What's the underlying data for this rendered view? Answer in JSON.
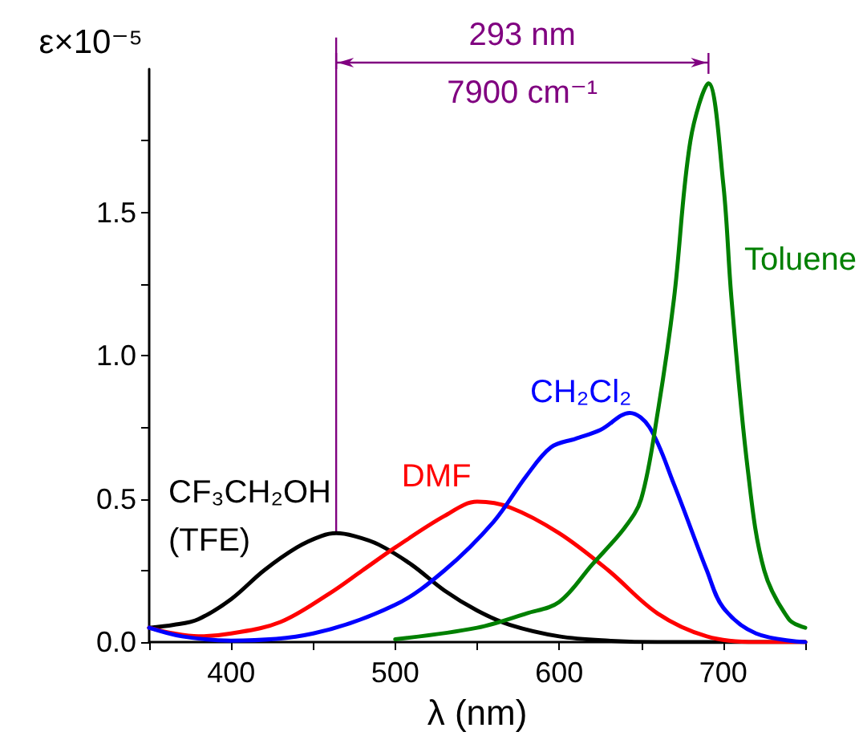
{
  "chart_data": {
    "type": "line",
    "xlabel": "λ (nm)",
    "ylabel": "ε×10⁻⁵",
    "xlim": [
      350,
      750
    ],
    "xticks": [
      {
        "value": 350,
        "label": null
      },
      400,
      {
        "value": 450,
        "label": null
      },
      500,
      {
        "value": 550,
        "label": null
      },
      600,
      {
        "value": 650,
        "label": null
      },
      700,
      {
        "value": 750,
        "label": null
      }
    ],
    "ylim": [
      0,
      2.0
    ],
    "yticks": [
      {
        "value": 0,
        "label": "0.0"
      },
      {
        "value": 0.25,
        "label": null
      },
      {
        "value": 0.5,
        "label": "0.5"
      },
      {
        "value": 0.75,
        "label": null
      },
      {
        "value": 1,
        "label": "1.0"
      },
      {
        "value": 1.25,
        "label": null
      },
      {
        "value": 1.5,
        "label": "1.5"
      },
      {
        "value": 1.75,
        "label": null
      }
    ],
    "grid": false,
    "legend": false,
    "marker": "none",
    "line_style": "solid",
    "annotations": [
      "293 nm",
      "7900 cm⁻¹"
    ],
    "ref_lines": [
      {
        "axis": "x",
        "value": 464,
        "color": "#800080"
      }
    ],
    "series": [
      {
        "name": "CF₃CH₂OH (TFE)",
        "color": "#000000",
        "x": [
          350,
          365,
          380,
          400,
          420,
          440,
          455,
          464,
          475,
          490,
          510,
          530,
          550,
          570,
          600,
          630,
          660,
          700,
          750
        ],
        "values": [
          0.05,
          0.06,
          0.08,
          0.15,
          0.25,
          0.33,
          0.37,
          0.38,
          0.37,
          0.34,
          0.27,
          0.18,
          0.11,
          0.06,
          0.02,
          0.005,
          0,
          0,
          0
        ]
      },
      {
        "name": "DMF",
        "color": "#ff0000",
        "x": [
          350,
          365,
          380,
          400,
          430,
          460,
          480,
          500,
          530,
          550,
          570,
          600,
          630,
          660,
          690,
          720,
          750
        ],
        "values": [
          0.05,
          0.03,
          0.02,
          0.03,
          0.07,
          0.17,
          0.25,
          0.33,
          0.44,
          0.49,
          0.47,
          0.38,
          0.25,
          0.1,
          0.02,
          0,
          0
        ]
      },
      {
        "name": "CH₂Cl₂",
        "color": "#0000ff",
        "x": [
          350,
          370,
          400,
          450,
          500,
          530,
          560,
          580,
          595,
          610,
          625,
          643,
          655,
          670,
          690,
          700,
          720,
          750
        ],
        "values": [
          0.05,
          0.02,
          0.005,
          0.03,
          0.13,
          0.25,
          0.42,
          0.58,
          0.68,
          0.71,
          0.74,
          0.8,
          0.75,
          0.55,
          0.25,
          0.12,
          0.03,
          0
        ]
      },
      {
        "name": "Toluene",
        "color": "#008000",
        "x": [
          500,
          550,
          580,
          600,
          620,
          640,
          650,
          660,
          670,
          680,
          691,
          700,
          705,
          715,
          725,
          740,
          750
        ],
        "values": [
          0.01,
          0.05,
          0.1,
          0.14,
          0.27,
          0.4,
          0.5,
          0.8,
          1.2,
          1.75,
          1.95,
          1.6,
          1.2,
          0.6,
          0.25,
          0.08,
          0.05
        ]
      }
    ]
  }
}
